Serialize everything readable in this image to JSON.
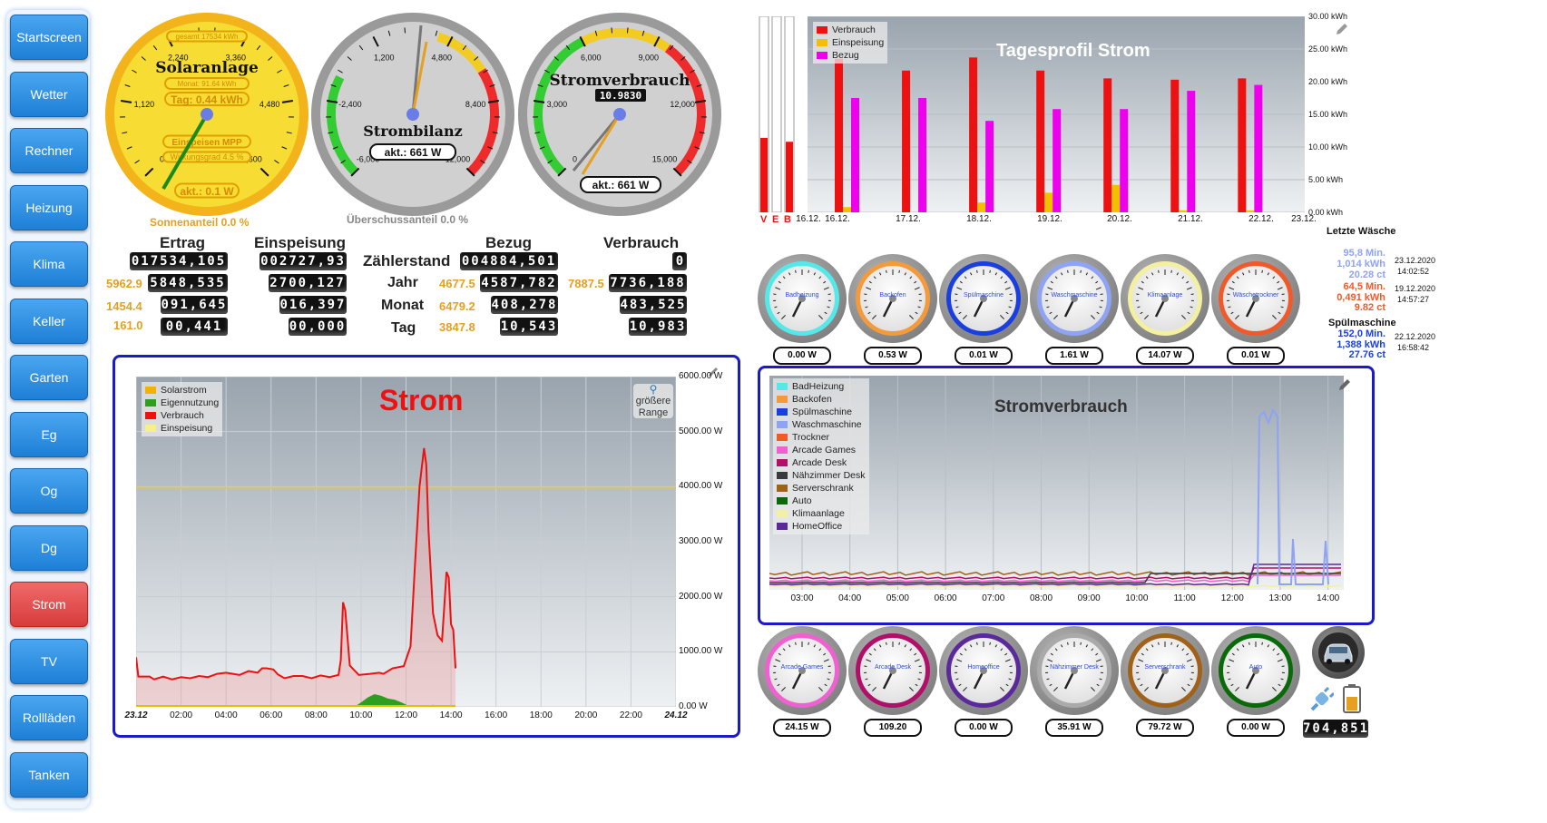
{
  "nav": [
    {
      "label": "Startscreen",
      "active": false
    },
    {
      "label": "Wetter",
      "active": false
    },
    {
      "label": "Rechner",
      "active": false
    },
    {
      "label": "Heizung",
      "active": false
    },
    {
      "label": "Klima",
      "active": false
    },
    {
      "label": "Keller",
      "active": false
    },
    {
      "label": "Garten",
      "active": false
    },
    {
      "label": "Eg",
      "active": false
    },
    {
      "label": "Og",
      "active": false
    },
    {
      "label": "Dg",
      "active": false
    },
    {
      "label": "Strom",
      "active": true
    },
    {
      "label": "TV",
      "active": false
    },
    {
      "label": "Rollläden",
      "active": false
    },
    {
      "label": "Tanken",
      "active": false
    }
  ],
  "gauges": {
    "solar": {
      "title": "Solaranlage",
      "total": "gesamt 17534 kWh",
      "month": "Monat: 91.64 kWh",
      "day": "Tag: 0.44 kWh",
      "mode": "Einspeisen MPP",
      "efficiency": "Wirkungsgrad 4.5 %",
      "current": "akt.: 0.1 W",
      "caption": "Sonnenanteil 0.0 %",
      "ticks": [
        "0",
        "1,120",
        "2,240",
        "3,360",
        "4,480",
        "5,600"
      ]
    },
    "bilanz": {
      "title": "Strombilanz",
      "current": "akt.: 661 W",
      "caption": "Überschussanteil 0.0 %",
      "ticks": [
        "-6,000",
        "-2,400",
        "1,200",
        "4,800",
        "8,400",
        "12,000"
      ]
    },
    "verbrauch": {
      "title": "Stromverbrauch",
      "odometer": "10.9830",
      "current": "akt.: 661 W",
      "ticks": [
        "0",
        "3,000",
        "6,000",
        "9,000",
        "12,000",
        "15,000"
      ]
    }
  },
  "meters": {
    "headers": {
      "ertrag": "Ertrag",
      "einspeisung": "Einspeisung",
      "zaehler": "Zählerstand",
      "bezug": "Bezug",
      "verbrauch": "Verbrauch"
    },
    "rows": {
      "jahr": "Jahr",
      "monat": "Monat",
      "tag": "Tag"
    },
    "ertrag": [
      "017534,105",
      "5848,535",
      "091,645",
      "00,441"
    ],
    "ertrag_prev": [
      "5962.9",
      "1454.4",
      "161.0"
    ],
    "einspeisung": [
      "002727,93",
      "2700,127",
      "016,397",
      "00,000"
    ],
    "bezug": [
      "004884,501",
      "4587,782",
      "408,278",
      "10,543"
    ],
    "bezug_prev": [
      "4677.5",
      "6479.2",
      "3847.8"
    ],
    "verbrauch": [
      "0",
      "7736,188",
      "483,525",
      "10,983"
    ],
    "verbrauch_prev": [
      "7887.5"
    ]
  },
  "strom_chart": {
    "title": "Strom",
    "zoom_label": "größere Range",
    "legend": [
      {
        "name": "Solarstrom",
        "color": "#f2b300"
      },
      {
        "name": "Eigennutzung",
        "color": "#2e9e1e"
      },
      {
        "name": "Verbrauch",
        "color": "#ee1111"
      },
      {
        "name": "Einspeisung",
        "color": "#f5f08a"
      }
    ],
    "y_ticks": [
      "6000.00 W",
      "5000.00 W",
      "4000.00 W",
      "3000.00 W",
      "2000.00 W",
      "1000.00 W",
      "0.00 W"
    ],
    "x_ticks": [
      "23.12",
      "02:00",
      "04:00",
      "06:00",
      "08:00",
      "10:00",
      "12:00",
      "14:00",
      "16:00",
      "18:00",
      "20:00",
      "22:00",
      "24.12"
    ]
  },
  "tagesprofil": {
    "title": "Tagesprofil Strom",
    "legend": [
      {
        "name": "Verbrauch",
        "color": "#ee1111"
      },
      {
        "name": "Einspeisung",
        "color": "#f2c000"
      },
      {
        "name": "Bezug",
        "color": "#ee00ee"
      }
    ],
    "y_ticks": [
      "30.00 kWh",
      "25.00 kWh",
      "20.00 kWh",
      "15.00 kWh",
      "10.00 kWh",
      "5.00 kWh",
      "0.00 kWh"
    ],
    "x_ticks": [
      "16.12.",
      "16.12.",
      "17.12.",
      "18.12.",
      "19.12.",
      "20.12.",
      "21.12.",
      "22.12.",
      "23.12."
    ],
    "bar_labels": [
      "V",
      "E",
      "B"
    ]
  },
  "verbrauch_chart": {
    "title": "Stromverbrauch",
    "legend": [
      {
        "name": "BadHeizung",
        "color": "#55e8e8"
      },
      {
        "name": "Backofen",
        "color": "#f49a3a"
      },
      {
        "name": "Spülmaschine",
        "color": "#1a3fe0"
      },
      {
        "name": "Waschmaschine",
        "color": "#8fa3f5"
      },
      {
        "name": "Trockner",
        "color": "#f05a2a"
      },
      {
        "name": "Arcade Games",
        "color": "#f060d0"
      },
      {
        "name": "Arcade Desk",
        "color": "#b0106a"
      },
      {
        "name": "Nähzimmer Desk",
        "color": "#3a3a3a"
      },
      {
        "name": "Serverschrank",
        "color": "#a0621a"
      },
      {
        "name": "Auto",
        "color": "#0a6a0a"
      },
      {
        "name": "Klimaanlage",
        "color": "#f3f0a0"
      },
      {
        "name": "HomeOffice",
        "color": "#5a2a9a"
      }
    ],
    "x_ticks": [
      "03:00",
      "04:00",
      "05:00",
      "06:00",
      "07:00",
      "08:00",
      "09:00",
      "10:00",
      "11:00",
      "12:00",
      "13:00",
      "14:00"
    ]
  },
  "small_gauges_top": [
    {
      "name": "Badheizung",
      "value": "0.00 W",
      "color": "#55e8e8"
    },
    {
      "name": "Backofen",
      "value": "0.53 W",
      "color": "#f49a3a"
    },
    {
      "name": "Spülmaschine",
      "value": "0.01 W",
      "color": "#1a3fe0"
    },
    {
      "name": "Waschmaschine",
      "value": "1.61 W",
      "color": "#8fa3f5"
    },
    {
      "name": "Klimaanlage",
      "value": "14.07 W",
      "color": "#f3f0a0"
    },
    {
      "name": "Wäschetrockner",
      "value": "0.01 W",
      "color": "#f05a2a"
    }
  ],
  "small_gauges_bottom": [
    {
      "name": "Arcade Games",
      "value": "24.15 W",
      "color": "#f060d0"
    },
    {
      "name": "Arcade Desk",
      "value": "109.20",
      "color": "#b0106a"
    },
    {
      "name": "Homeoffice",
      "value": "0.00 W",
      "color": "#5a2a9a"
    },
    {
      "name": "Nähzimmer Desk",
      "value": "35.91 W",
      "color": "#aaaaaa"
    },
    {
      "name": "Serverschrank",
      "value": "79.72 W",
      "color": "#a0621a"
    },
    {
      "name": "Auto",
      "value": "0.00 W",
      "color": "#0a6a0a"
    }
  ],
  "waesche": {
    "title": "Letzte Wäsche",
    "wash": {
      "min": "95,8 Min.",
      "kwh": "1,014 kWh",
      "ct": "20.28 ct",
      "date": "23.12.2020",
      "time": "14:02:52"
    },
    "dry": {
      "min": "64,5 Min.",
      "kwh": "0,491 kWh",
      "ct": "9.82 ct",
      "date": "19.12.2020",
      "time": "14:57:27"
    }
  },
  "spuel": {
    "title": "Spülmaschine",
    "min": "152,0 Min.",
    "kwh": "1,388 kWh",
    "ct": "27.76 ct",
    "date": "22.12.2020",
    "time": "16:58:42"
  },
  "auto": {
    "odometer": "704,851"
  }
}
